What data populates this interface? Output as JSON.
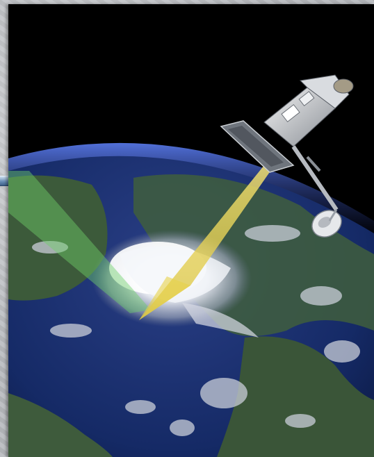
{
  "scene": {
    "subject": "satellite-observing-hurricane",
    "colors": {
      "space": "#000000",
      "ocean": "#13245a",
      "land": "#3e5a3a",
      "atmosphere_glow": "#3f5fd0",
      "swath_green": "#6fd06a",
      "beam_yellow": "#e8d24a",
      "frame_background": "#b9bcc0",
      "connector": "#6b8fb6"
    },
    "icons": [
      "satellite-icon",
      "dish-antenna-icon",
      "hurricane-icon"
    ]
  }
}
